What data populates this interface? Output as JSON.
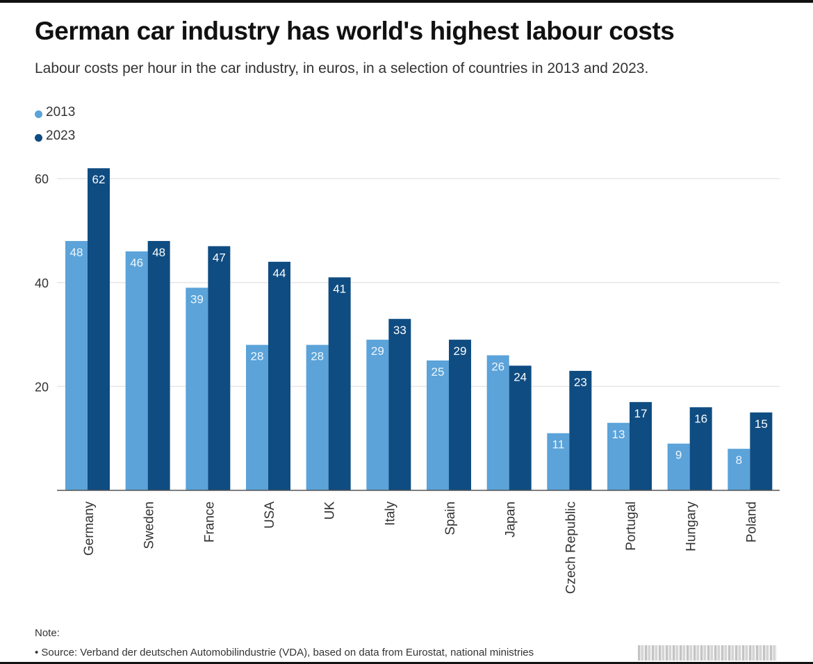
{
  "title": "German car industry has world's highest labour costs",
  "subtitle": "Labour costs per hour in the car industry, in euros, in a selection of countries in 2013 and 2023.",
  "note_label": "Note:",
  "source": "• Source: Verband der deutschen Automobilindustrie (VDA), based on data from Eurostat, national ministries",
  "colors": {
    "series_2013": "#5ba3d9",
    "series_2023": "#0f4c81",
    "grid": "#e6e6e6",
    "axis": "#555555"
  },
  "chart_data": {
    "type": "bar",
    "title": "German car industry has world's highest labour costs",
    "subtitle": "Labour costs per hour in the car industry, in euros, in a selection of countries in 2013 and 2023.",
    "categories": [
      "Germany",
      "Sweden",
      "France",
      "USA",
      "UK",
      "Italy",
      "Spain",
      "Japan",
      "Czech Republic",
      "Portugal",
      "Hungary",
      "Poland"
    ],
    "series": [
      {
        "name": "2013",
        "values": [
          48,
          46,
          39,
          28,
          28,
          29,
          25,
          26,
          11,
          13,
          9,
          8
        ]
      },
      {
        "name": "2023",
        "values": [
          62,
          48,
          47,
          44,
          41,
          33,
          29,
          24,
          23,
          17,
          16,
          15
        ]
      }
    ],
    "yticks": [
      20,
      40,
      60
    ],
    "ylim": [
      0,
      62
    ],
    "xlabel": "",
    "ylabel": "",
    "grid": true,
    "legend": "top-left",
    "data_labels": true
  }
}
